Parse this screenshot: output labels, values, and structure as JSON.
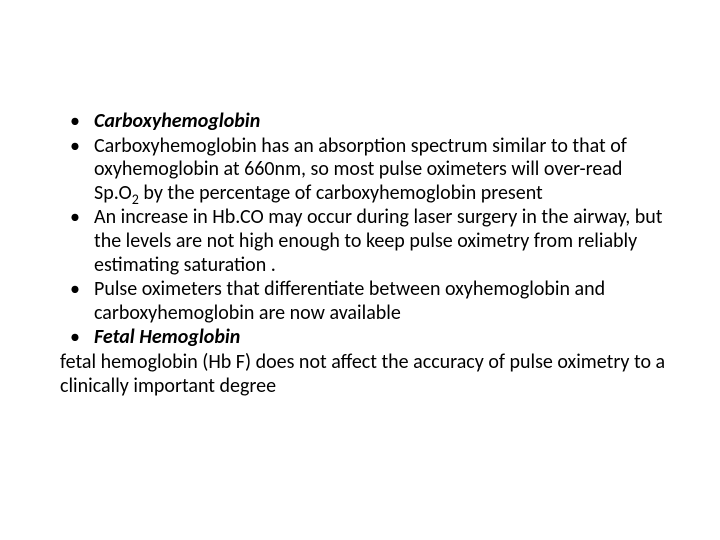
{
  "slide": {
    "background_color": "#ffffff",
    "text_color": "#000000",
    "font_family": "Calibri",
    "font_size_pt": 20,
    "bullets": [
      {
        "bold_italic": true,
        "text": "Carboxyhemoglobin"
      },
      {
        "bold_italic": false,
        "text_pre": "Carboxyhemoglobin has an absorption spectrum similar to that of oxyhemoglobin at 660nm, so most pulse oximeters will over-read Sp.O",
        "sub": "2",
        "text_post": " by the percentage of carboxyhemoglobin present"
      },
      {
        "bold_italic": false,
        "text": "An increase in Hb.CO may occur during laser surgery in the airway, but the levels are not high enough to keep pulse oximetry from reliably estimating saturation ."
      },
      {
        "bold_italic": false,
        "text": "Pulse oximeters that differentiate between oxyhemoglobin and carboxyhemoglobin are now available"
      },
      {
        "bold_italic": true,
        "text": "Fetal Hemoglobin"
      }
    ],
    "trailing_para": " fetal hemoglobin (Hb F) does not  affect the accuracy of pulse oximetry to a clinically important degree"
  }
}
